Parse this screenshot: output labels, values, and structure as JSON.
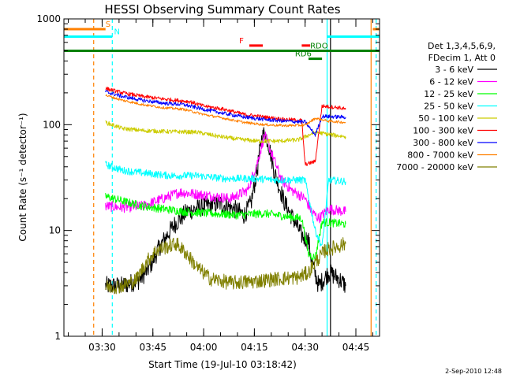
{
  "chart_data": {
    "type": "line",
    "title": "HESSI Observing Summary Count Rates",
    "xlabel": "Start Time (19-Jul-10 03:18:42)",
    "ylabel": "Count Rate (s⁻¹ detector⁻¹)",
    "y_scale": "log",
    "ylim": [
      1,
      1000
    ],
    "xlim": [
      "03:18:42",
      "04:52:00"
    ],
    "grid": false,
    "legend_position": "right",
    "x_ticks": [
      "03:30",
      "03:45",
      "04:00",
      "04:15",
      "04:30",
      "04:45"
    ],
    "y_ticks": [
      {
        "value": 1,
        "label": "1"
      },
      {
        "value": 10,
        "label": "10"
      },
      {
        "value": 100,
        "label": "100"
      },
      {
        "value": 1000,
        "label": "1000"
      }
    ],
    "legend_header": [
      "Det 1,3,4,5,6,9,",
      "FDecim 1, Att 0"
    ],
    "series": [
      {
        "name": "3 - 6 keV",
        "color": "#000000",
        "points": [
          [
            "03:31",
            3
          ],
          [
            "03:36",
            3
          ],
          [
            "03:41",
            3.4
          ],
          [
            "03:44",
            4.5
          ],
          [
            "03:47",
            7
          ],
          [
            "03:51",
            11
          ],
          [
            "03:55",
            15
          ],
          [
            "04:00",
            17
          ],
          [
            "04:05",
            18
          ],
          [
            "04:09",
            16
          ],
          [
            "04:12",
            14
          ],
          [
            "04:14",
            18
          ],
          [
            "04:16",
            40
          ],
          [
            "04:17",
            70
          ],
          [
            "04:18",
            85
          ],
          [
            "04:19",
            70
          ],
          [
            "04:21",
            35
          ],
          [
            "04:24",
            18
          ],
          [
            "04:27",
            12
          ],
          [
            "04:29",
            9
          ],
          [
            "04:31",
            8
          ],
          [
            "04:32",
            5
          ],
          [
            "04:34",
            3
          ],
          [
            "04:37",
            4
          ],
          [
            "04:40",
            3.5
          ],
          [
            "04:42",
            3
          ]
        ]
      },
      {
        "name": "6 - 12 keV",
        "color": "#ff00ff",
        "points": [
          [
            "03:31",
            17
          ],
          [
            "03:36",
            16.5
          ],
          [
            "03:42",
            17
          ],
          [
            "03:48",
            20
          ],
          [
            "03:53",
            23
          ],
          [
            "03:58",
            22
          ],
          [
            "04:03",
            21
          ],
          [
            "04:08",
            20
          ],
          [
            "04:13",
            24
          ],
          [
            "04:16",
            45
          ],
          [
            "04:18",
            80
          ],
          [
            "04:20",
            55
          ],
          [
            "04:23",
            30
          ],
          [
            "04:26",
            24
          ],
          [
            "04:30",
            20
          ],
          [
            "04:32",
            15
          ],
          [
            "04:34",
            13
          ],
          [
            "04:37",
            16
          ],
          [
            "04:42",
            15
          ]
        ]
      },
      {
        "name": "12 - 25 keV",
        "color": "#00ff00",
        "points": [
          [
            "03:31",
            21
          ],
          [
            "03:36",
            19
          ],
          [
            "03:42",
            17
          ],
          [
            "03:48",
            16
          ],
          [
            "03:55",
            15
          ],
          [
            "04:02",
            14.5
          ],
          [
            "04:10",
            14
          ],
          [
            "04:18",
            14.5
          ],
          [
            "04:25",
            13.5
          ],
          [
            "04:29",
            13
          ],
          [
            "04:31",
            6
          ],
          [
            "04:33",
            5.5
          ],
          [
            "04:35",
            12
          ],
          [
            "04:42",
            11.5
          ]
        ]
      },
      {
        "name": "25 - 50 keV",
        "color": "#00ffff",
        "points": [
          [
            "03:31",
            42
          ],
          [
            "03:36",
            37
          ],
          [
            "03:42",
            35
          ],
          [
            "03:50",
            33
          ],
          [
            "03:58",
            33
          ],
          [
            "04:06",
            31
          ],
          [
            "04:14",
            31
          ],
          [
            "04:22",
            30
          ],
          [
            "04:30",
            30
          ],
          [
            "04:33",
            10
          ],
          [
            "04:35",
            7
          ],
          [
            "04:37",
            30
          ],
          [
            "04:42",
            29
          ]
        ]
      },
      {
        "name": "50 - 100 keV",
        "color": "#cccc00",
        "points": [
          [
            "03:31",
            105
          ],
          [
            "03:36",
            92
          ],
          [
            "03:42",
            88
          ],
          [
            "03:50",
            86
          ],
          [
            "03:58",
            85
          ],
          [
            "04:04",
            78
          ],
          [
            "04:10",
            73
          ],
          [
            "04:16",
            70
          ],
          [
            "04:22",
            70
          ],
          [
            "04:28",
            72
          ],
          [
            "04:33",
            85
          ],
          [
            "04:38",
            80
          ],
          [
            "04:42",
            77
          ]
        ]
      },
      {
        "name": "100 - 300 keV",
        "color": "#ff0000",
        "points": [
          [
            "03:31",
            220
          ],
          [
            "03:36",
            200
          ],
          [
            "03:42",
            185
          ],
          [
            "03:48",
            175
          ],
          [
            "03:52",
            170
          ],
          [
            "03:56",
            165
          ],
          [
            "04:00",
            150
          ],
          [
            "04:06",
            140
          ],
          [
            "04:12",
            125
          ],
          [
            "04:18",
            118
          ],
          [
            "04:24",
            112
          ],
          [
            "04:29",
            110
          ],
          [
            "04:30",
            42
          ],
          [
            "04:33",
            45
          ],
          [
            "04:35",
            150
          ],
          [
            "04:40",
            145
          ],
          [
            "04:42",
            140
          ]
        ]
      },
      {
        "name": "300 - 800 keV",
        "color": "#0000ff",
        "points": [
          [
            "03:31",
            205
          ],
          [
            "03:36",
            185
          ],
          [
            "03:42",
            170
          ],
          [
            "03:48",
            160
          ],
          [
            "03:54",
            155
          ],
          [
            "04:00",
            140
          ],
          [
            "04:06",
            128
          ],
          [
            "04:12",
            118
          ],
          [
            "04:18",
            112
          ],
          [
            "04:24",
            108
          ],
          [
            "04:30",
            106
          ],
          [
            "04:33",
            80
          ],
          [
            "04:35",
            120
          ],
          [
            "04:42",
            118
          ]
        ]
      },
      {
        "name": "800 - 7000 keV",
        "color": "#ff8000",
        "points": [
          [
            "03:31",
            190
          ],
          [
            "03:36",
            170
          ],
          [
            "03:42",
            155
          ],
          [
            "03:48",
            145
          ],
          [
            "03:54",
            140
          ],
          [
            "04:00",
            125
          ],
          [
            "04:06",
            115
          ],
          [
            "04:12",
            105
          ],
          [
            "04:18",
            100
          ],
          [
            "04:24",
            98
          ],
          [
            "04:30",
            99
          ],
          [
            "04:33",
            115
          ],
          [
            "04:37",
            108
          ],
          [
            "04:42",
            105
          ]
        ]
      },
      {
        "name": "7000 - 20000 keV",
        "color": "#808000",
        "points": [
          [
            "03:31",
            2.9
          ],
          [
            "03:36",
            3
          ],
          [
            "03:40",
            3.4
          ],
          [
            "03:43",
            5
          ],
          [
            "03:46",
            6.5
          ],
          [
            "03:49",
            7
          ],
          [
            "03:52",
            7.5
          ],
          [
            "03:55",
            6
          ],
          [
            "03:58",
            4.5
          ],
          [
            "04:02",
            3.5
          ],
          [
            "04:08",
            3.2
          ],
          [
            "04:15",
            3.3
          ],
          [
            "04:22",
            3.5
          ],
          [
            "04:28",
            3.6
          ],
          [
            "04:31",
            4
          ],
          [
            "04:33",
            5
          ],
          [
            "04:36",
            6.5
          ],
          [
            "04:42",
            7.5
          ]
        ]
      }
    ],
    "vertical_lines": [
      {
        "time": "03:27:30",
        "color": "#ff8000",
        "style": "dashed"
      },
      {
        "time": "03:33:00",
        "color": "#00ffff",
        "style": "dashed"
      },
      {
        "time": "04:36:30",
        "color": "#00ffff",
        "style": "solid"
      },
      {
        "time": "04:37:30",
        "color": "#000000",
        "style": "solid"
      },
      {
        "time": "04:49:30",
        "color": "#ff8000",
        "style": "solid"
      },
      {
        "time": "04:51:00",
        "color": "#00ffff",
        "style": "dashed"
      }
    ],
    "flag_bars": [
      {
        "label": "S",
        "color": "#ff8000",
        "label_at": "03:31:00",
        "y": 800,
        "segments": [
          [
            "03:18:42",
            "03:31:00"
          ],
          [
            "04:50:00",
            "04:52:00"
          ]
        ]
      },
      {
        "label": "N",
        "color": "#00ffff",
        "label_at": "03:33:30",
        "y": 680,
        "segments": [
          [
            "03:18:42",
            "03:33:00"
          ],
          [
            "04:36:30",
            "04:52:00"
          ]
        ]
      },
      {
        "label": "F",
        "color": "#ff0000",
        "label_at": "04:10:30",
        "y": 560,
        "segments": [
          [
            "04:13:30",
            "04:17:30"
          ],
          [
            "04:29:00",
            "04:31:30"
          ]
        ]
      },
      {
        "label": "RD6",
        "color": "#008000",
        "label_at": "04:27:00",
        "y": 420,
        "segments": [
          [
            "04:31:00",
            "04:35:00"
          ]
        ]
      },
      {
        "label": "RDO",
        "color": "#008000",
        "label_at": "04:31:30",
        "y": 500,
        "segments": [
          [
            "03:18:42",
            "04:52:00"
          ]
        ]
      }
    ]
  },
  "footer_date": "2-Sep-2010 12:48"
}
